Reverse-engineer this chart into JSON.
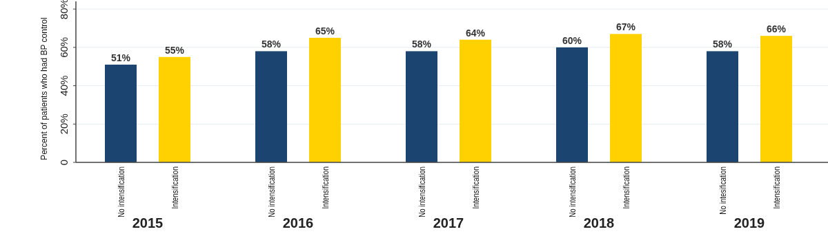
{
  "chart_data": {
    "type": "bar",
    "ylabel": "Percent of patients who had BP control",
    "categories": [
      "No intensification",
      "Intensification",
      "No intensification",
      "Intensification",
      "No intensification",
      "Intensification",
      "No intensification",
      "Intensification",
      "No intesification",
      "Intensification"
    ],
    "values": [
      51,
      55,
      58,
      65,
      58,
      64,
      60,
      67,
      58,
      66
    ],
    "colors": [
      "#1b4570",
      "#ffd100",
      "#1b4570",
      "#ffd100",
      "#1b4570",
      "#ffd100",
      "#1b4570",
      "#ffd100",
      "#1b4570",
      "#ffd100"
    ],
    "value_labels": [
      "51%",
      "55%",
      "58%",
      "65%",
      "58%",
      "64%",
      "60%",
      "67%",
      "58%",
      "66%"
    ],
    "ylim": [
      0,
      84
    ],
    "yticks": [
      0,
      {
        "value": 20,
        "label": "20%"
      },
      {
        "value": 40,
        "label": "40%"
      },
      {
        "value": 60,
        "label": "60%"
      },
      {
        "value": 80,
        "label": "80%"
      }
    ],
    "grid": "y",
    "annotations": [
      "2015",
      "2016",
      "2017",
      "2018",
      "2019"
    ]
  }
}
